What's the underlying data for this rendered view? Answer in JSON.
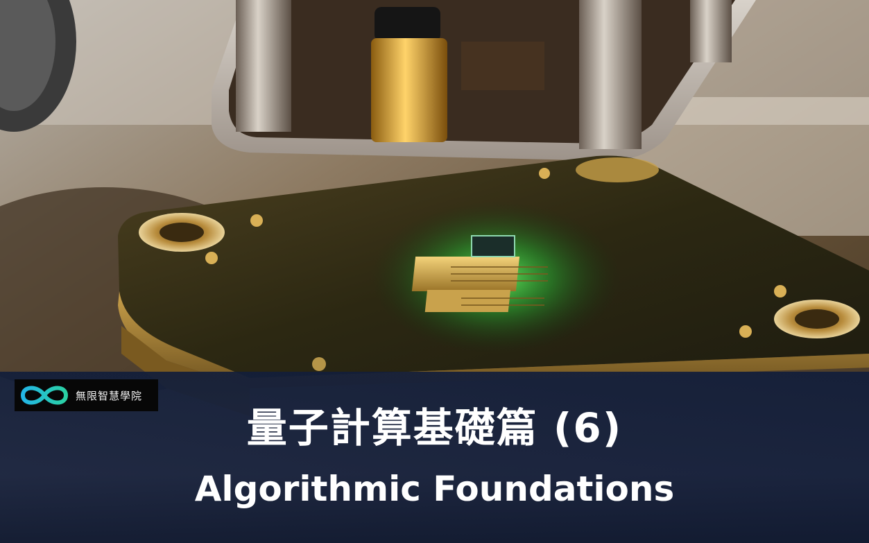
{
  "logo": {
    "icon": "infinity-icon",
    "text": "無限智慧學院",
    "colors": {
      "start": "#23b6e6",
      "end": "#2ad1a4"
    }
  },
  "title": {
    "chinese": "量子計算基礎篇 (6)",
    "english": "Algorithmic Foundations"
  },
  "background": {
    "subject": "quantum-chip-photo"
  }
}
